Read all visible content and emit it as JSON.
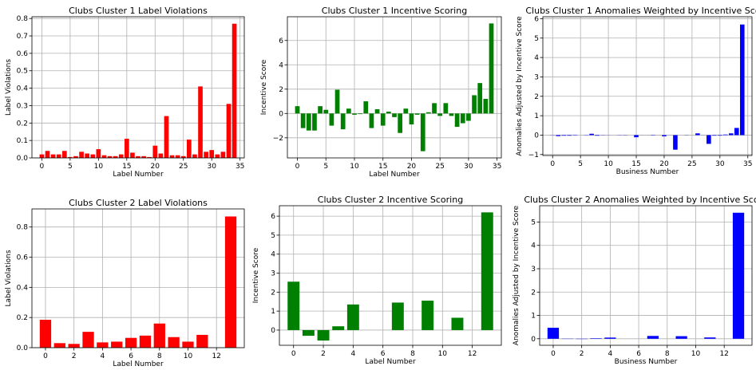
{
  "chart_data": [
    {
      "type": "bar",
      "title": "Clubs Cluster 1 Label Violations",
      "xlabel": "Label Number",
      "ylabel": "Label Violations",
      "xlim": [
        -1.75,
        35.75
      ],
      "ylim": [
        0,
        0.81
      ],
      "xticks": [
        0,
        5,
        10,
        15,
        20,
        25,
        30,
        35
      ],
      "yticks": [
        0.0,
        0.1,
        0.2,
        0.3,
        0.4,
        0.5,
        0.6,
        0.7,
        0.8
      ],
      "ytick_labels": [
        "0.0",
        "0.1",
        "0.2",
        "0.3",
        "0.4",
        "0.5",
        "0.6",
        "0.7",
        "0.8"
      ],
      "color": "#ff0000",
      "grid": true,
      "bar_width": 0.8,
      "x": [
        0,
        1,
        2,
        3,
        4,
        5,
        6,
        7,
        8,
        9,
        10,
        11,
        12,
        13,
        14,
        15,
        16,
        17,
        18,
        19,
        20,
        21,
        22,
        23,
        24,
        25,
        26,
        27,
        28,
        29,
        30,
        31,
        32,
        33,
        34
      ],
      "values": [
        0.02,
        0.04,
        0.02,
        0.02,
        0.04,
        0.005,
        0.01,
        0.035,
        0.025,
        0.02,
        0.05,
        0.015,
        0.01,
        0.01,
        0.02,
        0.11,
        0.03,
        0.01,
        0.01,
        0.005,
        0.07,
        0.025,
        0.24,
        0.015,
        0.015,
        0.01,
        0.105,
        0.02,
        0.41,
        0.035,
        0.045,
        0.02,
        0.035,
        0.31,
        0.77
      ]
    },
    {
      "type": "bar",
      "title": "Clubs Cluster 1 Incentive Scoring",
      "xlabel": "Label Number",
      "ylabel": "Incentive Score",
      "xlim": [
        -1.75,
        35.75
      ],
      "ylim": [
        -3.65,
        7.95
      ],
      "xticks": [
        0,
        5,
        10,
        15,
        20,
        25,
        30,
        35
      ],
      "yticks": [
        -2,
        0,
        2,
        4,
        6
      ],
      "ytick_labels": [
        "−2",
        "0",
        "2",
        "4",
        "6"
      ],
      "color": "#008000",
      "grid": true,
      "bar_width": 0.8,
      "x": [
        0,
        1,
        2,
        3,
        4,
        5,
        6,
        7,
        8,
        9,
        10,
        11,
        12,
        13,
        14,
        15,
        16,
        17,
        18,
        19,
        20,
        21,
        22,
        23,
        24,
        25,
        26,
        27,
        28,
        29,
        30,
        31,
        32,
        33,
        34
      ],
      "values": [
        0.6,
        -1.2,
        -1.4,
        -1.4,
        0.6,
        0.3,
        -1.0,
        1.95,
        -1.3,
        0.4,
        -0.1,
        -0.05,
        1.0,
        -1.2,
        0.35,
        -1.0,
        0.15,
        -0.3,
        -1.6,
        0.4,
        -0.9,
        -0.1,
        -3.1,
        0.1,
        0.85,
        -0.2,
        0.85,
        -0.2,
        -1.1,
        -0.8,
        -0.6,
        1.5,
        2.5,
        1.2,
        7.4
      ]
    },
    {
      "type": "bar",
      "title": "Clubs Cluster 1 Anomalies Weighted by Incentive Score",
      "xlabel": "Business Number",
      "ylabel": "Anomalies Adjusted by Incentive Score",
      "xlim": [
        -1.75,
        35.75
      ],
      "ylim": [
        -1.05,
        6.1
      ],
      "xticks": [
        0,
        5,
        10,
        15,
        20,
        25,
        30,
        35
      ],
      "yticks": [
        -1,
        0,
        1,
        2,
        3,
        4,
        5,
        6
      ],
      "ytick_labels": [
        "−1",
        "0",
        "1",
        "2",
        "3",
        "4",
        "5",
        "6"
      ],
      "color": "#0000ff",
      "grid": true,
      "bar_width": 0.8,
      "x": [
        0,
        1,
        2,
        3,
        4,
        5,
        6,
        7,
        8,
        9,
        10,
        11,
        12,
        13,
        14,
        15,
        16,
        17,
        18,
        19,
        20,
        21,
        22,
        23,
        24,
        25,
        26,
        27,
        28,
        29,
        30,
        31,
        32,
        33,
        34
      ],
      "values": [
        0.01,
        -0.05,
        -0.03,
        -0.03,
        0.02,
        0.0,
        -0.01,
        0.07,
        -0.03,
        0.01,
        -0.005,
        0.0,
        0.01,
        -0.01,
        0.0,
        -0.11,
        0.005,
        -0.003,
        -0.016,
        0.002,
        -0.06,
        -0.003,
        -0.75,
        0.0,
        0.01,
        -0.002,
        0.09,
        -0.004,
        -0.45,
        -0.028,
        -0.027,
        0.03,
        0.09,
        0.37,
        5.7
      ]
    },
    {
      "type": "bar",
      "title": "Clubs Cluster 2 Label Violations",
      "xlabel": "Label Number",
      "ylabel": "Label Violations",
      "xlim": [
        -0.95,
        13.95
      ],
      "ylim": [
        0,
        0.92
      ],
      "xticks": [
        0,
        2,
        4,
        6,
        8,
        10,
        12,
        14
      ],
      "yticks": [
        0.0,
        0.2,
        0.4,
        0.6,
        0.8
      ],
      "ytick_labels": [
        "0.0",
        "0.2",
        "0.4",
        "0.6",
        "0.8"
      ],
      "color": "#ff0000",
      "grid": true,
      "bar_width": 0.8,
      "x": [
        0,
        1,
        2,
        3,
        4,
        5,
        6,
        7,
        8,
        9,
        10,
        11,
        12,
        13
      ],
      "values": [
        0.185,
        0.03,
        0.025,
        0.105,
        0.035,
        0.04,
        0.065,
        0.08,
        0.16,
        0.07,
        0.04,
        0.085,
        0.0,
        0.87
      ]
    },
    {
      "type": "bar",
      "title": "Clubs Cluster 2 Incentive Scoring",
      "xlabel": "Label Number",
      "ylabel": "Incentive Score",
      "xlim": [
        -0.95,
        13.95
      ],
      "ylim": [
        -0.8,
        6.55
      ],
      "xticks": [
        0,
        2,
        4,
        6,
        8,
        10,
        12,
        14
      ],
      "yticks": [
        0,
        1,
        2,
        3,
        4,
        5,
        6
      ],
      "ytick_labels": [
        "0",
        "1",
        "2",
        "3",
        "4",
        "5",
        "6"
      ],
      "color": "#008000",
      "grid": true,
      "bar_width": 0.8,
      "x": [
        0,
        1,
        2,
        3,
        4,
        5,
        6,
        7,
        8,
        9,
        10,
        11,
        12,
        13
      ],
      "values": [
        2.55,
        -0.3,
        -0.55,
        0.2,
        1.35,
        0.0,
        0.0,
        1.45,
        0.0,
        1.55,
        0.0,
        0.65,
        0.0,
        6.2
      ]
    },
    {
      "type": "bar",
      "title": "Clubs Cluster 2 Anomalies Weighted by Incentive Score",
      "xlabel": "Business Number",
      "ylabel": "Anomalies Adjusted by Incentive Score",
      "xlim": [
        -0.95,
        13.95
      ],
      "ylim": [
        -0.28,
        5.7
      ],
      "xticks": [
        0,
        2,
        4,
        6,
        8,
        10,
        12,
        14
      ],
      "yticks": [
        0,
        1,
        2,
        3,
        4,
        5
      ],
      "ytick_labels": [
        "0",
        "1",
        "2",
        "3",
        "4",
        "5"
      ],
      "color": "#0000ff",
      "grid": true,
      "bar_width": 0.8,
      "x": [
        0,
        1,
        2,
        3,
        4,
        5,
        6,
        7,
        8,
        9,
        10,
        11,
        12,
        13
      ],
      "values": [
        0.47,
        -0.01,
        -0.013,
        0.02,
        0.05,
        0.0,
        0.0,
        0.12,
        0.0,
        0.11,
        0.0,
        0.055,
        0.0,
        5.4
      ]
    }
  ]
}
